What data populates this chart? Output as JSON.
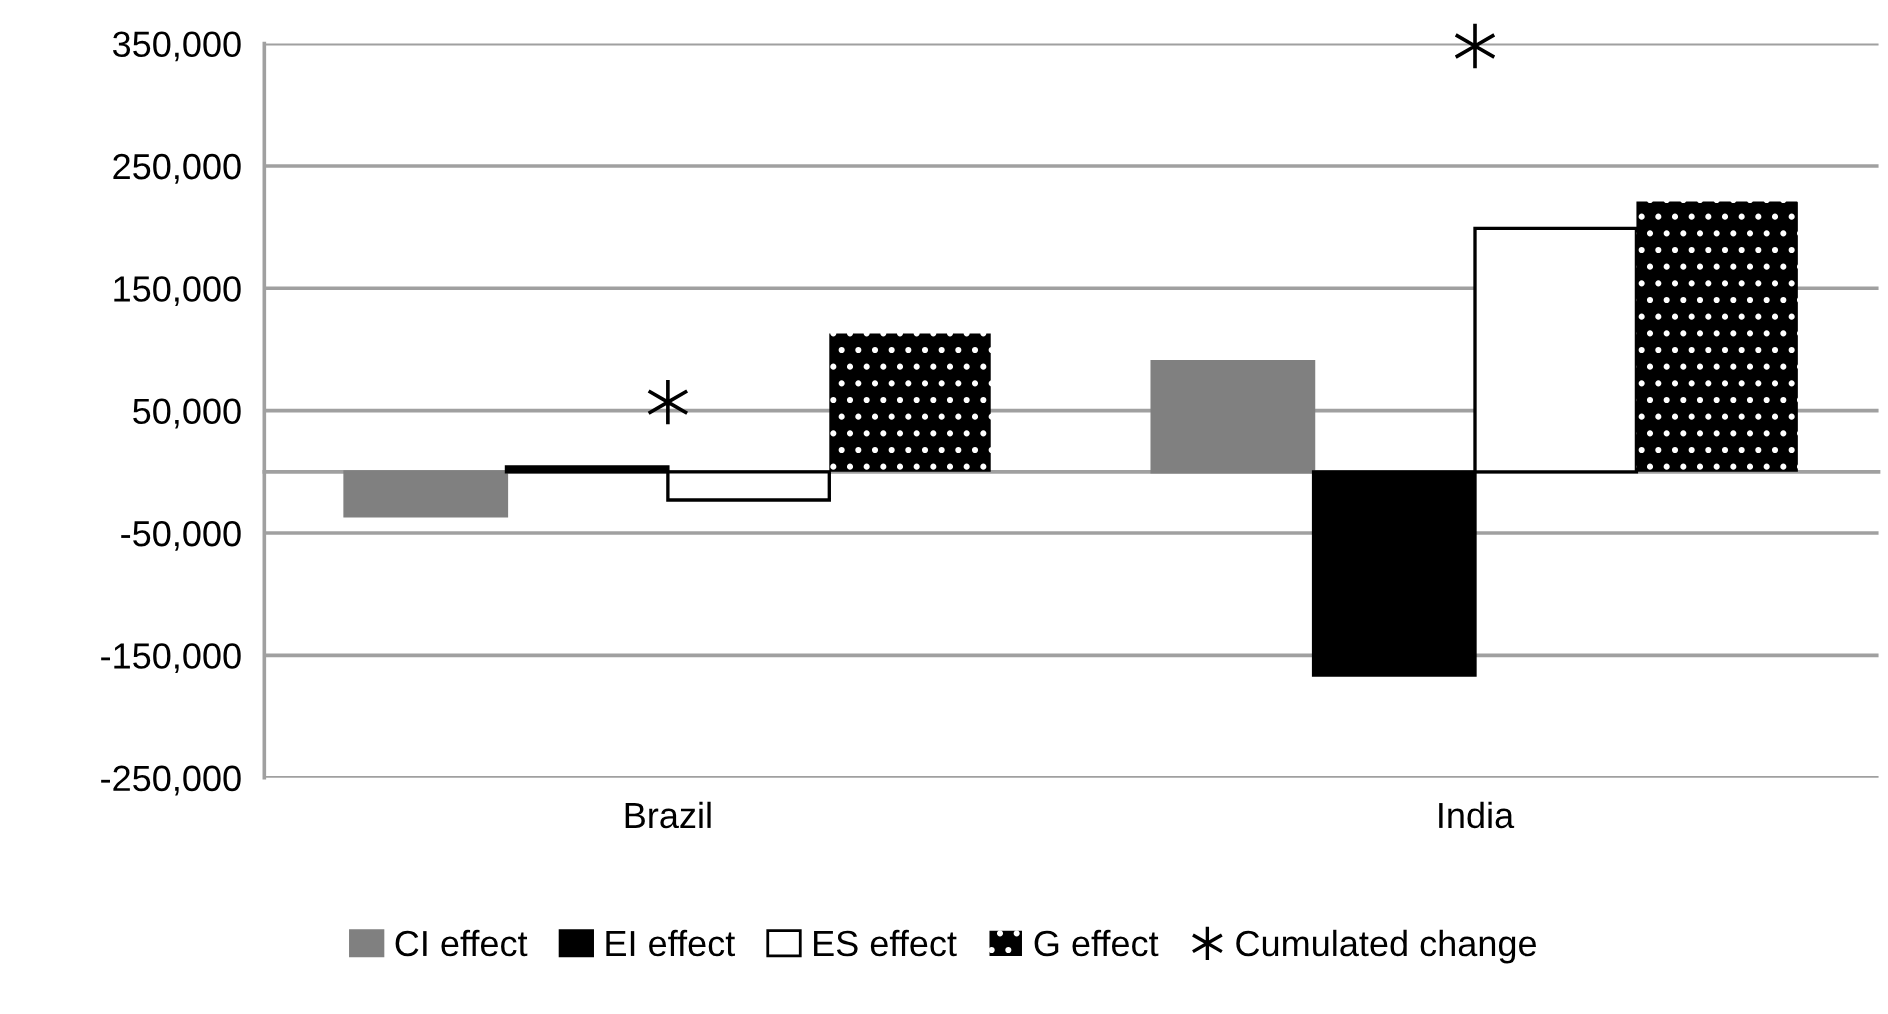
{
  "chart_data": {
    "type": "bar",
    "categories": [
      "Brazil",
      "India"
    ],
    "series": [
      {
        "name": "CI effect",
        "color": "#808080",
        "values": [
          -36000,
          90000
        ]
      },
      {
        "name": "EI effect",
        "color": "#000000",
        "values": [
          4000,
          -166000
        ]
      },
      {
        "name": "ES effect",
        "color": "#ffffff",
        "values": [
          -23000,
          199000
        ]
      },
      {
        "name": "G effect",
        "color": "#000000",
        "values": [
          113000,
          221000
        ]
      },
      {
        "name": "Cumulated change",
        "type": "scatter",
        "marker": "cross",
        "color": "#000000",
        "x": [
          "Brazil",
          "India"
        ],
        "values": [
          57000,
          348000
        ]
      }
    ],
    "ylim": [
      -250000,
      350000
    ],
    "yticks": [
      {
        "value": 350000,
        "label": "350,000"
      },
      {
        "value": 250000,
        "label": "250,000"
      },
      {
        "value": 150000,
        "label": "150,000"
      },
      {
        "value": 50000,
        "label": "50,000"
      },
      {
        "value": -50000,
        "label": "-50,000"
      },
      {
        "value": -150000,
        "label": "-150,000"
      },
      {
        "value": -250000,
        "label": "-250,000"
      }
    ],
    "grid": "y",
    "legend": "bottom"
  }
}
